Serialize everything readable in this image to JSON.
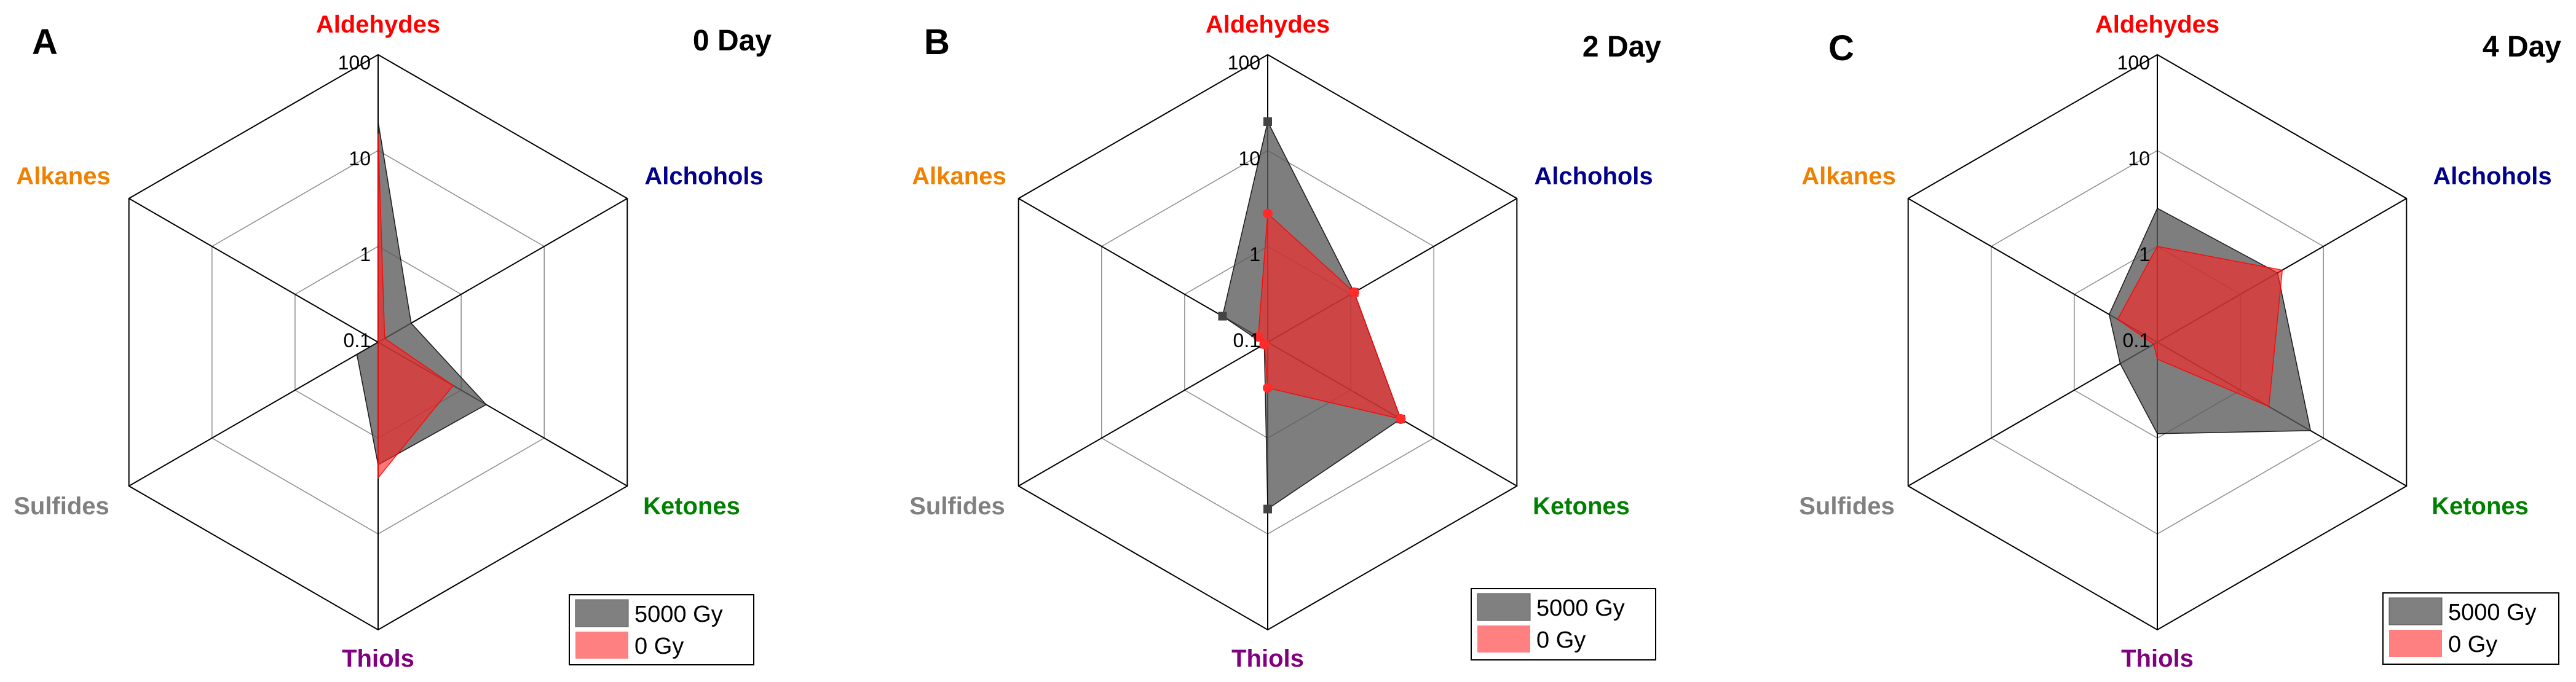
{
  "colors": {
    "series_5000": "#000000",
    "series_0": "#ff0000",
    "alkanes_label": "#f08000",
    "aldehydes_label": "#ff0000",
    "alchohols_label": "#00008b",
    "ketones_label": "#008000",
    "sulfides_label": "#808080",
    "thiols_label": "#800080",
    "ring_line": "#8c8c8c",
    "spoke_line": "#000000"
  },
  "chart_data": [
    {
      "type": "radar",
      "panel_letter": "A",
      "title": "0 Day",
      "axes": [
        "Aldehydes",
        "Alchohols",
        "Ketones",
        "Thiols",
        "Sulfides",
        "Alkanes"
      ],
      "scale": "log",
      "range": [
        0.1,
        100
      ],
      "ticks": [
        "0.1",
        "1",
        "10",
        "100"
      ],
      "series": [
        {
          "name": "5000 Gy",
          "values": [
            20,
            0.25,
            2.0,
            1.9,
            0.18,
            0.1
          ],
          "markers": false
        },
        {
          "name": "0 Gy",
          "values": [
            15,
            0.12,
            0.8,
            2.6,
            0.1,
            0.1
          ],
          "markers": false
        }
      ],
      "legend": "bottom-right",
      "grid": true
    },
    {
      "type": "radar",
      "panel_letter": "B",
      "title": "2 Day",
      "axes": [
        "Aldehydes",
        "Alchohols",
        "Ketones",
        "Thiols",
        "Sulfides",
        "Alkanes"
      ],
      "scale": "log",
      "range": [
        0.1,
        100
      ],
      "ticks": [
        "0.1",
        "1",
        "10",
        "100"
      ],
      "series": [
        {
          "name": "5000 Gy",
          "values": [
            20,
            1.1,
            4.0,
            5.5,
            0.11,
            0.35
          ],
          "markers": true
        },
        {
          "name": "0 Gy",
          "values": [
            2.2,
            1.1,
            4.0,
            0.3,
            0.11,
            0.13
          ],
          "markers": true
        }
      ],
      "legend": "bottom-right",
      "grid": true
    },
    {
      "type": "radar",
      "panel_letter": "C",
      "title": "4 Day",
      "axes": [
        "Aldehydes",
        "Alchohols",
        "Ketones",
        "Thiols",
        "Sulfides",
        "Alkanes"
      ],
      "scale": "log",
      "range": [
        0.1,
        100
      ],
      "ticks": [
        "0.1",
        "1",
        "10",
        "100"
      ],
      "series": [
        {
          "name": "5000 Gy",
          "values": [
            2.5,
            2.8,
            7.0,
            0.9,
            0.28,
            0.38
          ],
          "markers": false
        },
        {
          "name": "0 Gy",
          "values": [
            1.0,
            3.2,
            2.2,
            0.15,
            0.11,
            0.3
          ],
          "markers": false
        }
      ],
      "legend": "bottom-right",
      "grid": true
    }
  ]
}
